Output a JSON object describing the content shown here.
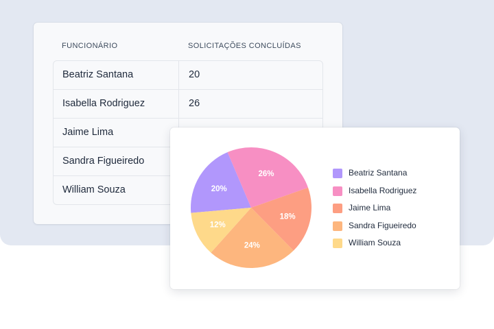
{
  "table": {
    "headers": [
      "FUNCIONÁRIO",
      "SOLICITAÇÕES CONCLUÍDAS"
    ],
    "rows": [
      [
        "Beatriz Santana",
        "20"
      ],
      [
        "Isabella Rodriguez",
        "26"
      ],
      [
        "Jaime Lima",
        ""
      ],
      [
        "Sandra Figueiredo",
        ""
      ],
      [
        "William Souza",
        ""
      ]
    ]
  },
  "chart_data": {
    "type": "pie",
    "categories": [
      "Beatriz Santana",
      "Isabella Rodriguez",
      "Jaime Lima",
      "Sandra Figueiredo",
      "William Souza"
    ],
    "values": [
      20,
      26,
      18,
      24,
      12
    ],
    "labels": [
      "20%",
      "26%",
      "18%",
      "24%",
      "12%"
    ],
    "colors": [
      "#b197fc",
      "#f78fc3",
      "#fd9e82",
      "#fdb67e",
      "#fed98a"
    ],
    "legend": "right"
  }
}
